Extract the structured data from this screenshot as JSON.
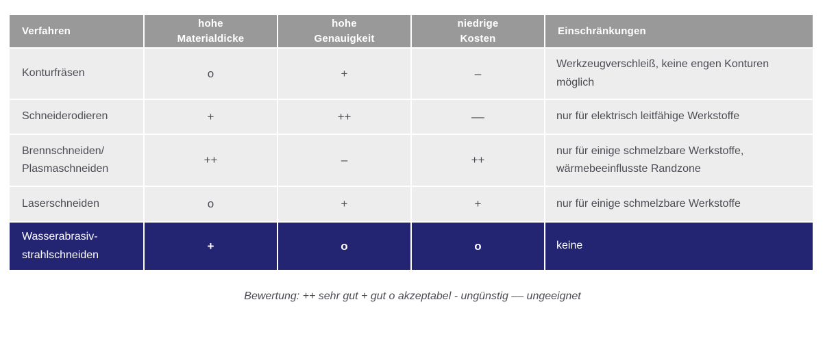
{
  "table": {
    "columns": [
      {
        "label": "Verfahren"
      },
      {
        "label": "hohe\nMaterialdicke"
      },
      {
        "label": "hohe\nGenauigkeit"
      },
      {
        "label": "niedrige\nKosten"
      },
      {
        "label": "Einschränkungen"
      }
    ],
    "rows": [
      {
        "name": "Konturfräsen",
        "materialdicke": "o",
        "genauigkeit": "+",
        "kosten": "–",
        "einschraenkungen": "Werkzeugverschleiß, keine engen Konturen\nmöglich",
        "highlighted": false
      },
      {
        "name": "Schneiderodieren",
        "materialdicke": "+",
        "genauigkeit": "++",
        "kosten": "––",
        "einschraenkungen": "nur für elektrisch leitfähige Werkstoffe",
        "highlighted": false
      },
      {
        "name": "Brennschneiden/\nPlasmaschneiden",
        "materialdicke": "++",
        "genauigkeit": "–",
        "kosten": "++",
        "einschraenkungen": "nur für einige schmelzbare Werkstoffe,\nwärmebeeinflusste Randzone",
        "highlighted": false
      },
      {
        "name": "Laserschneiden",
        "materialdicke": "o",
        "genauigkeit": "+",
        "kosten": "+",
        "einschraenkungen": "nur für einige schmelzbare Werkstoffe",
        "highlighted": false
      },
      {
        "name": "Wasserabrasiv-\nstrahlschneiden",
        "materialdicke": "+",
        "genauigkeit": "o",
        "kosten": "o",
        "einschraenkungen": "keine",
        "highlighted": true
      }
    ]
  },
  "caption": "Bewertung: ++ sehr gut + gut o akzeptabel - ungünstig –– ungeeignet",
  "colors": {
    "header_bg": "#999999",
    "row_bg": "#ededed",
    "highlight_bg": "#242572",
    "header_text": "#ffffff",
    "body_text": "#4c4c55"
  }
}
